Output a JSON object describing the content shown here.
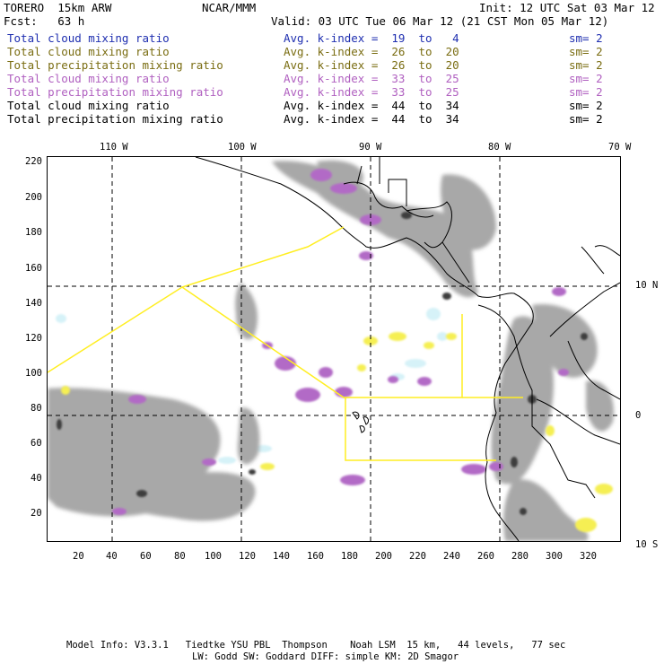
{
  "header": {
    "left1": "TORERO  15km ARW",
    "center1": "NCAR/MMM",
    "right1": "Init: 12 UTC Sat 03 Mar 12",
    "left2": "Fcst:   63 h",
    "right2": "Valid: 03 UTC Tue 06 Mar 12 (21 CST Mon 05 Mar 12)"
  },
  "legend": [
    {
      "field": "Total cloud mixing ratio",
      "kindex": "Avg. k-index =  19  to   4",
      "sm": "sm= 2",
      "color": "#1f2fb0"
    },
    {
      "field": "Total cloud mixing ratio",
      "kindex": "Avg. k-index =  26  to  20",
      "sm": "sm= 2",
      "color": "#7a6d12"
    },
    {
      "field": "Total precipitation mixing ratio",
      "kindex": "Avg. k-index =  26  to  20",
      "sm": "sm= 2",
      "color": "#7a6d12"
    },
    {
      "field": "Total cloud mixing ratio",
      "kindex": "Avg. k-index =  33  to  25",
      "sm": "sm= 2",
      "color": "#b060c0"
    },
    {
      "field": "Total precipitation mixing ratio",
      "kindex": "Avg. k-index =  33  to  25",
      "sm": "sm= 2",
      "color": "#b060c0"
    },
    {
      "field": "Total cloud mixing ratio",
      "kindex": "Avg. k-index =  44  to  34",
      "sm": "sm= 2",
      "color": "#000000"
    },
    {
      "field": "Total precipitation mixing ratio",
      "kindex": "Avg. k-index =  44  to  34",
      "sm": "sm= 2",
      "color": "#000000"
    }
  ],
  "axes": {
    "top_longitudes": [
      "110 W",
      "100 W",
      "90 W",
      "80 W",
      "70 W"
    ],
    "right_latitudes": [
      "10 N",
      "0",
      "10 S"
    ],
    "left_ticks": [
      "220",
      "200",
      "180",
      "160",
      "140",
      "120",
      "100",
      "80",
      "60",
      "40",
      "20"
    ],
    "bottom_ticks": [
      "20",
      "40",
      "60",
      "80",
      "100",
      "120",
      "140",
      "160",
      "180",
      "200",
      "220",
      "240",
      "260",
      "280",
      "300",
      "320"
    ]
  },
  "footer": {
    "line1": "Model Info: V3.3.1   Tiedtke YSU PBL  Thompson    Noah LSM  15 km,   44 levels,   77 sec",
    "line2": "LW: Godd SW: Goddard DIFF: simple KM: 2D Smagor"
  },
  "colors": {
    "cloud_gray": "#a8a8a8",
    "cloud_dark": "#3c3c3c",
    "precip_purple": "#b26ac6",
    "precip_yellow": "#f5ef52",
    "light_cyan": "#d6f2f8",
    "yellow_line": "#ffee22"
  }
}
